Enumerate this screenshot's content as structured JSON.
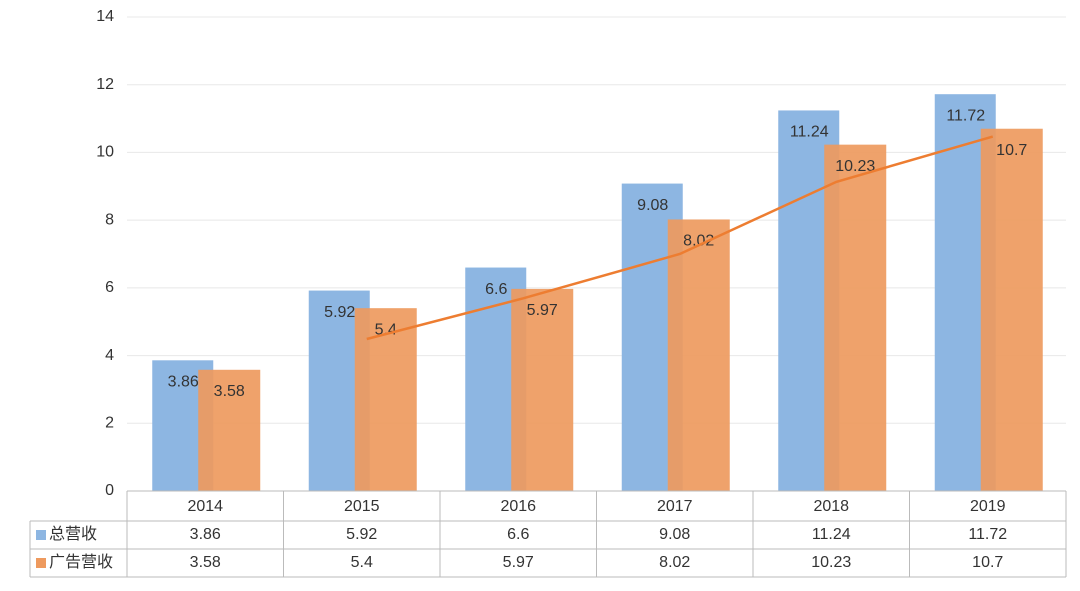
{
  "chart_data": {
    "type": "bar",
    "categories": [
      "2014",
      "2015",
      "2016",
      "2017",
      "2018",
      "2019"
    ],
    "series": [
      {
        "name": "总营收",
        "color": "#8db6e2",
        "values": [
          3.86,
          5.92,
          6.6,
          9.08,
          11.24,
          11.72
        ]
      },
      {
        "name": "广告营收",
        "color": "#ee9a5e",
        "values": [
          3.58,
          5.4,
          5.97,
          8.02,
          10.23,
          10.7
        ]
      }
    ],
    "trendline": {
      "color": "#ed7d31",
      "values": [
        null,
        4.49,
        5.69,
        7.0,
        9.13,
        10.47
      ]
    },
    "ylim": [
      0,
      14
    ],
    "yticks": [
      0,
      2,
      4,
      6,
      8,
      10,
      12,
      14
    ],
    "grid": true,
    "data_table": true
  }
}
